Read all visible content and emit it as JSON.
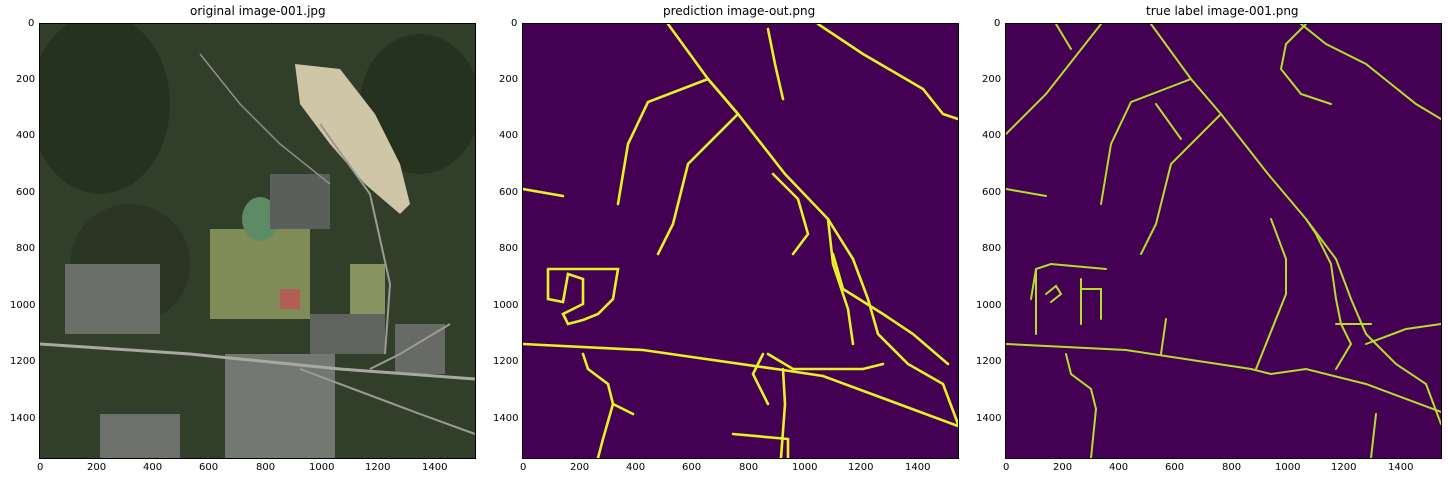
{
  "panels": [
    {
      "title": "original image-001.jpg"
    },
    {
      "title": "prediction image-out.png"
    },
    {
      "title": "true label image-001.png"
    }
  ],
  "axes": {
    "x_ticks": [
      "0",
      "200",
      "400",
      "600",
      "800",
      "1000",
      "1200",
      "1400"
    ],
    "y_ticks": [
      "0",
      "200",
      "400",
      "600",
      "800",
      "1000",
      "1200",
      "1400"
    ],
    "range": [
      0,
      1540
    ]
  },
  "colors": {
    "background_mask": "#440154",
    "road_mask_pred": "#e6f226",
    "road_mask_true": "#b5de2b",
    "satellite_forest": "#2c3a24",
    "satellite_field": "#7d8a57"
  }
}
